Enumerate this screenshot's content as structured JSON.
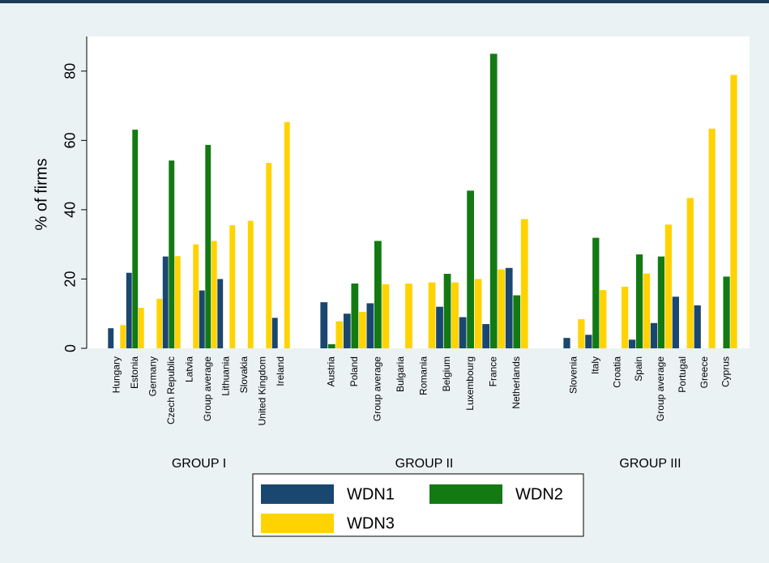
{
  "chart_data": {
    "type": "bar",
    "ylabel": "% of firms",
    "ylim": [
      0,
      90
    ],
    "yticks": [
      0,
      20,
      40,
      60,
      80
    ],
    "legend": "bottom",
    "groups": [
      {
        "name": "GROUP I",
        "categories": [
          "Hungary",
          "Estonia",
          "Germany",
          "Czech Republic",
          "Latvia",
          "Group average",
          "Lithuania",
          "Slovakia",
          "United Kingdom",
          "Ireland"
        ]
      },
      {
        "name": "GROUP II",
        "categories": [
          "Austria",
          "Poland",
          "Group average",
          "Bulgaria",
          "Romania",
          "Belgium",
          "Luxembourg",
          "France",
          "Netherlands"
        ]
      },
      {
        "name": "GROUP III",
        "categories": [
          "Slovenia",
          "Italy",
          "Croatia",
          "Spain",
          "Group average",
          "Portugal",
          "Greece",
          "Cyprus"
        ]
      }
    ],
    "series": [
      {
        "name": "WDN1",
        "color": "#1a476f",
        "values": [
          [
            5.8,
            21.8,
            null,
            26.5,
            null,
            16.7,
            20,
            null,
            null,
            8.8
          ],
          [
            13.3,
            10,
            13,
            null,
            null,
            12,
            9,
            7,
            23.2
          ],
          [
            3,
            3.9,
            null,
            2.5,
            7.3,
            14.9,
            12.4,
            null
          ]
        ]
      },
      {
        "name": "WDN2",
        "color": "#137a13",
        "values": [
          [
            null,
            63.1,
            null,
            54.2,
            null,
            58.7,
            null,
            null,
            null,
            null
          ],
          [
            1.2,
            18.7,
            31,
            null,
            null,
            21.5,
            45.5,
            85,
            15.3
          ],
          [
            null,
            31.9,
            null,
            27.1,
            26.5,
            null,
            null,
            20.7
          ]
        ]
      },
      {
        "name": "WDN3",
        "color": "#ffd300",
        "values": [
          [
            6.7,
            11.7,
            14.3,
            26.6,
            30,
            31,
            35.5,
            36.8,
            53.5,
            65.3
          ],
          [
            7.8,
            10.5,
            18.5,
            18.7,
            19,
            19,
            20,
            22.8,
            37.3
          ],
          [
            8.4,
            16.8,
            17.8,
            21.6,
            35.7,
            43.4,
            63.4,
            78.9
          ]
        ]
      }
    ]
  }
}
